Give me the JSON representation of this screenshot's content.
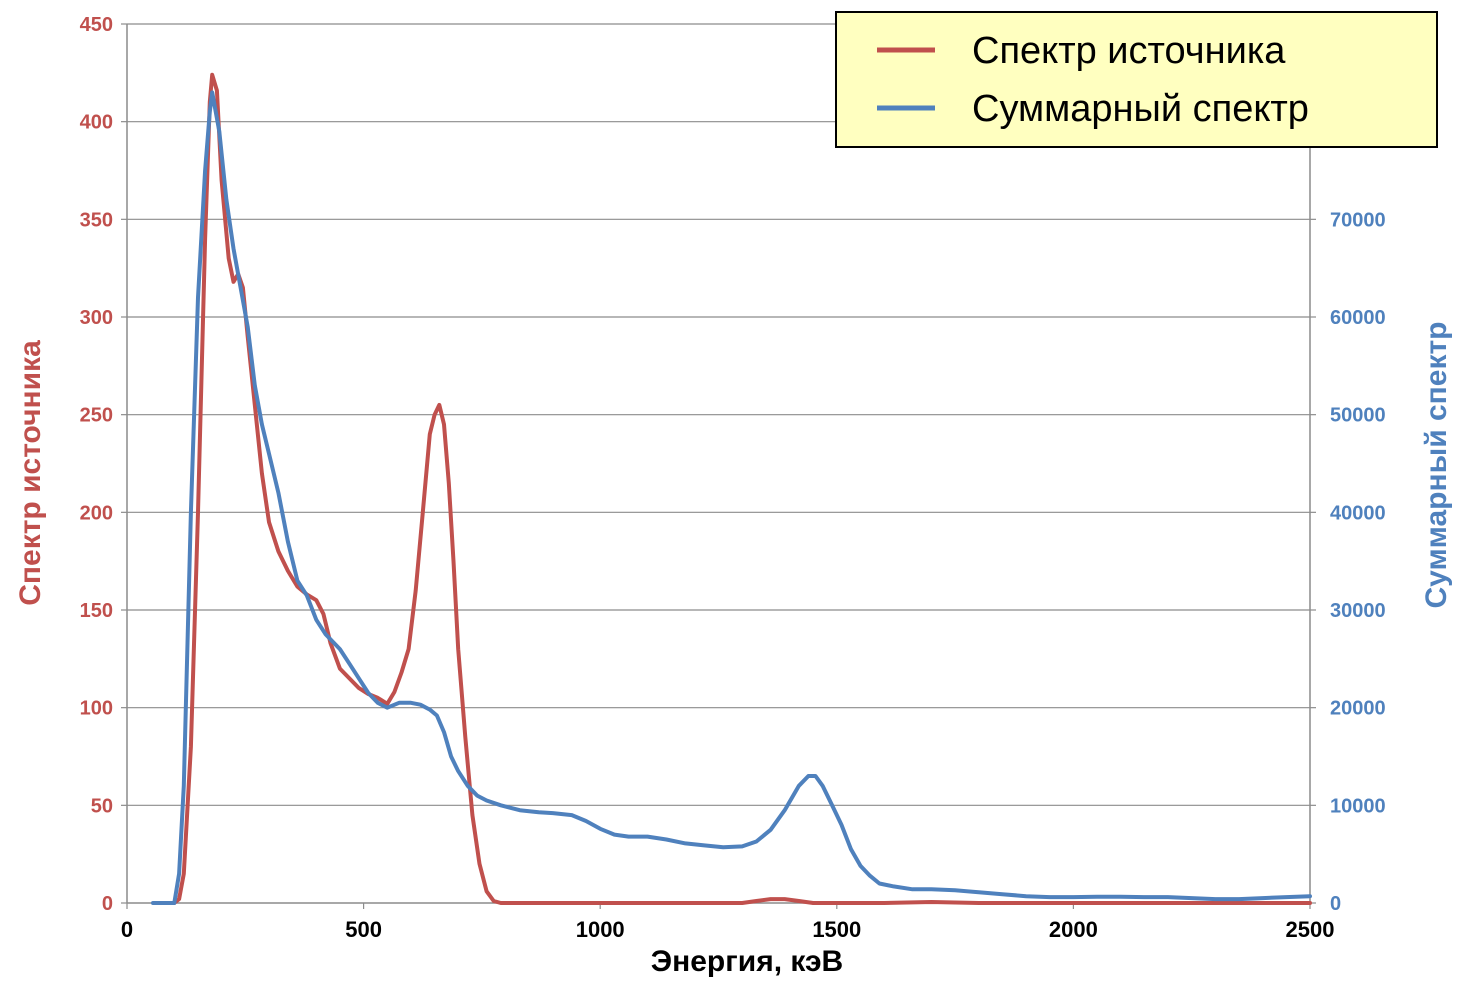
{
  "chart_data": {
    "type": "line",
    "title": "",
    "xlabel": "Энергия, кэВ",
    "ylabel": "Спектр источника",
    "y2label": "Суммарный спектр",
    "xlim": [
      0,
      2500
    ],
    "ylim": [
      0,
      450
    ],
    "y2lim": [
      0,
      90000
    ],
    "x_ticks": [
      "0",
      "500",
      "1000",
      "1500",
      "2000",
      "2500"
    ],
    "y_ticks": [
      "0",
      "50",
      "100",
      "150",
      "200",
      "250",
      "300",
      "350",
      "400",
      "450"
    ],
    "y2_ticks": [
      "0",
      "10000",
      "20000",
      "30000",
      "40000",
      "50000",
      "60000",
      "70000"
    ],
    "grid": true,
    "legend_position": "top-right",
    "series": [
      {
        "name": "Спектр источника",
        "axis": "left",
        "color": "#c0504d",
        "points": [
          [
            60,
            0
          ],
          [
            100,
            0
          ],
          [
            110,
            2
          ],
          [
            120,
            15
          ],
          [
            135,
            80
          ],
          [
            150,
            200
          ],
          [
            165,
            340
          ],
          [
            175,
            410
          ],
          [
            180,
            424
          ],
          [
            190,
            416
          ],
          [
            200,
            370
          ],
          [
            215,
            330
          ],
          [
            225,
            318
          ],
          [
            235,
            322
          ],
          [
            245,
            315
          ],
          [
            255,
            290
          ],
          [
            270,
            255
          ],
          [
            285,
            220
          ],
          [
            300,
            195
          ],
          [
            320,
            180
          ],
          [
            340,
            170
          ],
          [
            360,
            162
          ],
          [
            380,
            158
          ],
          [
            400,
            155
          ],
          [
            415,
            148
          ],
          [
            430,
            133
          ],
          [
            450,
            120
          ],
          [
            470,
            115
          ],
          [
            490,
            110
          ],
          [
            510,
            107
          ],
          [
            530,
            105
          ],
          [
            550,
            102
          ],
          [
            565,
            108
          ],
          [
            580,
            118
          ],
          [
            595,
            130
          ],
          [
            610,
            160
          ],
          [
            625,
            200
          ],
          [
            640,
            240
          ],
          [
            650,
            250
          ],
          [
            660,
            255
          ],
          [
            670,
            245
          ],
          [
            680,
            215
          ],
          [
            690,
            175
          ],
          [
            700,
            130
          ],
          [
            715,
            85
          ],
          [
            730,
            45
          ],
          [
            745,
            20
          ],
          [
            760,
            6
          ],
          [
            775,
            1
          ],
          [
            790,
            0
          ],
          [
            1300,
            0
          ],
          [
            1330,
            1
          ],
          [
            1360,
            2
          ],
          [
            1390,
            2
          ],
          [
            1420,
            1
          ],
          [
            1450,
            0
          ],
          [
            1600,
            0
          ],
          [
            1700,
            0.5
          ],
          [
            1800,
            0
          ],
          [
            2500,
            0
          ]
        ]
      },
      {
        "name": "Суммарный спектр",
        "axis": "right",
        "color": "#4f81bd",
        "points": [
          [
            55,
            0
          ],
          [
            100,
            0
          ],
          [
            110,
            3000
          ],
          [
            120,
            12000
          ],
          [
            135,
            40000
          ],
          [
            150,
            62000
          ],
          [
            165,
            75000
          ],
          [
            175,
            81000
          ],
          [
            180,
            83000
          ],
          [
            195,
            79000
          ],
          [
            210,
            72000
          ],
          [
            225,
            67000
          ],
          [
            240,
            63000
          ],
          [
            255,
            59000
          ],
          [
            270,
            53000
          ],
          [
            285,
            49000
          ],
          [
            300,
            46000
          ],
          [
            320,
            42000
          ],
          [
            340,
            37000
          ],
          [
            360,
            33000
          ],
          [
            380,
            31500
          ],
          [
            400,
            29000
          ],
          [
            420,
            27500
          ],
          [
            450,
            26000
          ],
          [
            470,
            24500
          ],
          [
            490,
            23000
          ],
          [
            510,
            21500
          ],
          [
            530,
            20500
          ],
          [
            550,
            20000
          ],
          [
            575,
            20500
          ],
          [
            600,
            20500
          ],
          [
            620,
            20300
          ],
          [
            640,
            19800
          ],
          [
            655,
            19200
          ],
          [
            670,
            17500
          ],
          [
            685,
            15000
          ],
          [
            700,
            13500
          ],
          [
            720,
            12000
          ],
          [
            740,
            11000
          ],
          [
            760,
            10500
          ],
          [
            790,
            10000
          ],
          [
            830,
            9500
          ],
          [
            870,
            9300
          ],
          [
            900,
            9200
          ],
          [
            940,
            9000
          ],
          [
            970,
            8400
          ],
          [
            1000,
            7600
          ],
          [
            1030,
            7000
          ],
          [
            1060,
            6800
          ],
          [
            1100,
            6800
          ],
          [
            1140,
            6500
          ],
          [
            1180,
            6100
          ],
          [
            1220,
            5900
          ],
          [
            1260,
            5700
          ],
          [
            1300,
            5800
          ],
          [
            1330,
            6300
          ],
          [
            1360,
            7500
          ],
          [
            1390,
            9500
          ],
          [
            1420,
            12000
          ],
          [
            1440,
            13000
          ],
          [
            1455,
            13000
          ],
          [
            1470,
            12000
          ],
          [
            1490,
            10000
          ],
          [
            1510,
            8000
          ],
          [
            1530,
            5500
          ],
          [
            1550,
            3800
          ],
          [
            1570,
            2800
          ],
          [
            1590,
            2000
          ],
          [
            1620,
            1700
          ],
          [
            1660,
            1400
          ],
          [
            1700,
            1400
          ],
          [
            1750,
            1300
          ],
          [
            1800,
            1100
          ],
          [
            1850,
            900
          ],
          [
            1900,
            700
          ],
          [
            1950,
            600
          ],
          [
            2000,
            600
          ],
          [
            2050,
            650
          ],
          [
            2100,
            650
          ],
          [
            2150,
            600
          ],
          [
            2200,
            600
          ],
          [
            2250,
            500
          ],
          [
            2300,
            400
          ],
          [
            2350,
            400
          ],
          [
            2400,
            500
          ],
          [
            2450,
            600
          ],
          [
            2500,
            700
          ]
        ]
      }
    ]
  }
}
